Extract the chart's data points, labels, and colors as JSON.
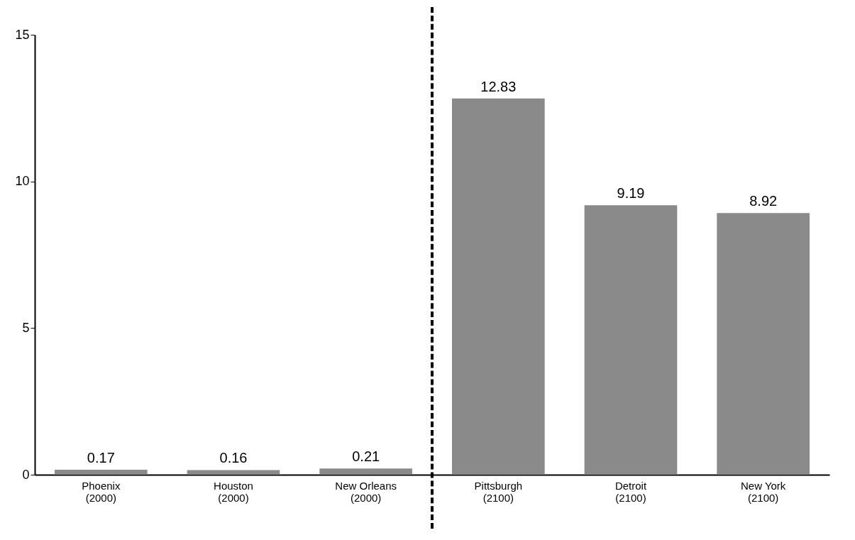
{
  "chart_data": {
    "type": "bar",
    "categories": [
      "Phoenix\n(2000)",
      "Houston\n(2000)",
      "New Orleans\n(2000)",
      "Pittsburgh\n(2100)",
      "Detroit\n(2100)",
      "New York\n(2100)"
    ],
    "values": [
      0.17,
      0.16,
      0.21,
      12.83,
      9.19,
      8.92
    ],
    "color": "#8a8a8a",
    "ylim": [
      0,
      15
    ],
    "yticks": [
      0,
      5,
      10,
      15
    ],
    "grid": false,
    "data_labels": true
  }
}
